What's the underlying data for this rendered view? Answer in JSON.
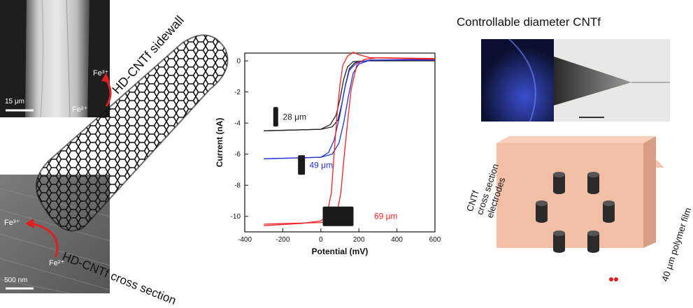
{
  "sem": {
    "top_scale_label": "15 μm",
    "bottom_scale_label": "500 nm",
    "ion_top_1": "Fe³⁺",
    "ion_top_2": "Fe²⁺",
    "ion_bottom_1": "Fe³⁺",
    "ion_bottom_2": "Fe²⁺"
  },
  "labels": {
    "sidewall": "HD-CNTf sidewall",
    "cross_section": "HD-CNTf cross section",
    "controllable": "Controllable diameter CNTf",
    "electrodes": [
      "CNTf",
      "cross section",
      "electrodes"
    ],
    "polymer_film": "40 μm polymer film"
  },
  "chart_data": {
    "type": "line",
    "xlabel": "Potential (mV)",
    "ylabel": "Current (nA)",
    "xlim": [
      -400,
      600
    ],
    "ylim": [
      -11,
      0.5
    ],
    "xticks": [
      -400,
      -200,
      0,
      200,
      400,
      600
    ],
    "yticks": [
      0,
      -2,
      -4,
      -6,
      -8,
      -10
    ],
    "series": [
      {
        "name": "28 μm",
        "color": "#222222",
        "forward": [
          [
            -300,
            -4.5
          ],
          [
            0,
            -4.4
          ],
          [
            50,
            -4.1
          ],
          [
            80,
            -3.5
          ],
          [
            100,
            -2.5
          ],
          [
            120,
            -1.2
          ],
          [
            140,
            -0.4
          ],
          [
            170,
            -0.05
          ],
          [
            250,
            0.0
          ],
          [
            600,
            0.0
          ]
        ],
        "reverse": [
          [
            600,
            0.05
          ],
          [
            250,
            0.02
          ],
          [
            180,
            -0.1
          ],
          [
            150,
            -0.5
          ],
          [
            130,
            -1.5
          ],
          [
            110,
            -2.8
          ],
          [
            90,
            -3.8
          ],
          [
            60,
            -4.25
          ],
          [
            0,
            -4.4
          ],
          [
            -300,
            -4.5
          ]
        ]
      },
      {
        "name": "49 μm",
        "color": "#2233dd",
        "forward": [
          [
            -300,
            -6.3
          ],
          [
            0,
            -6.2
          ],
          [
            40,
            -5.9
          ],
          [
            70,
            -5.1
          ],
          [
            100,
            -3.5
          ],
          [
            125,
            -1.8
          ],
          [
            150,
            -0.6
          ],
          [
            190,
            -0.1
          ],
          [
            260,
            0.05
          ],
          [
            600,
            0.05
          ]
        ],
        "reverse": [
          [
            600,
            0.1
          ],
          [
            260,
            0.05
          ],
          [
            200,
            -0.2
          ],
          [
            170,
            -0.8
          ],
          [
            145,
            -2.3
          ],
          [
            120,
            -4.0
          ],
          [
            95,
            -5.3
          ],
          [
            60,
            -6.0
          ],
          [
            0,
            -6.2
          ],
          [
            -300,
            -6.3
          ]
        ]
      },
      {
        "name": "69 μm",
        "color": "#ee2222",
        "forward": [
          [
            -300,
            -10.6
          ],
          [
            -100,
            -10.45
          ],
          [
            0,
            -10.3
          ],
          [
            30,
            -10.0
          ],
          [
            55,
            -8.5
          ],
          [
            70,
            -6.0
          ],
          [
            85,
            -3.5
          ],
          [
            100,
            -1.6
          ],
          [
            115,
            -0.3
          ],
          [
            140,
            0.3
          ],
          [
            170,
            0.55
          ],
          [
            200,
            0.4
          ],
          [
            260,
            0.2
          ],
          [
            600,
            0.1
          ]
        ],
        "reverse": [
          [
            600,
            0.15
          ],
          [
            300,
            0.2
          ],
          [
            230,
            0.1
          ],
          [
            190,
            -0.2
          ],
          [
            160,
            -1.8
          ],
          [
            140,
            -4.0
          ],
          [
            120,
            -6.5
          ],
          [
            105,
            -8.5
          ],
          [
            85,
            -9.8
          ],
          [
            50,
            -10.3
          ],
          [
            0,
            -10.4
          ],
          [
            -300,
            -10.5
          ]
        ]
      }
    ]
  }
}
